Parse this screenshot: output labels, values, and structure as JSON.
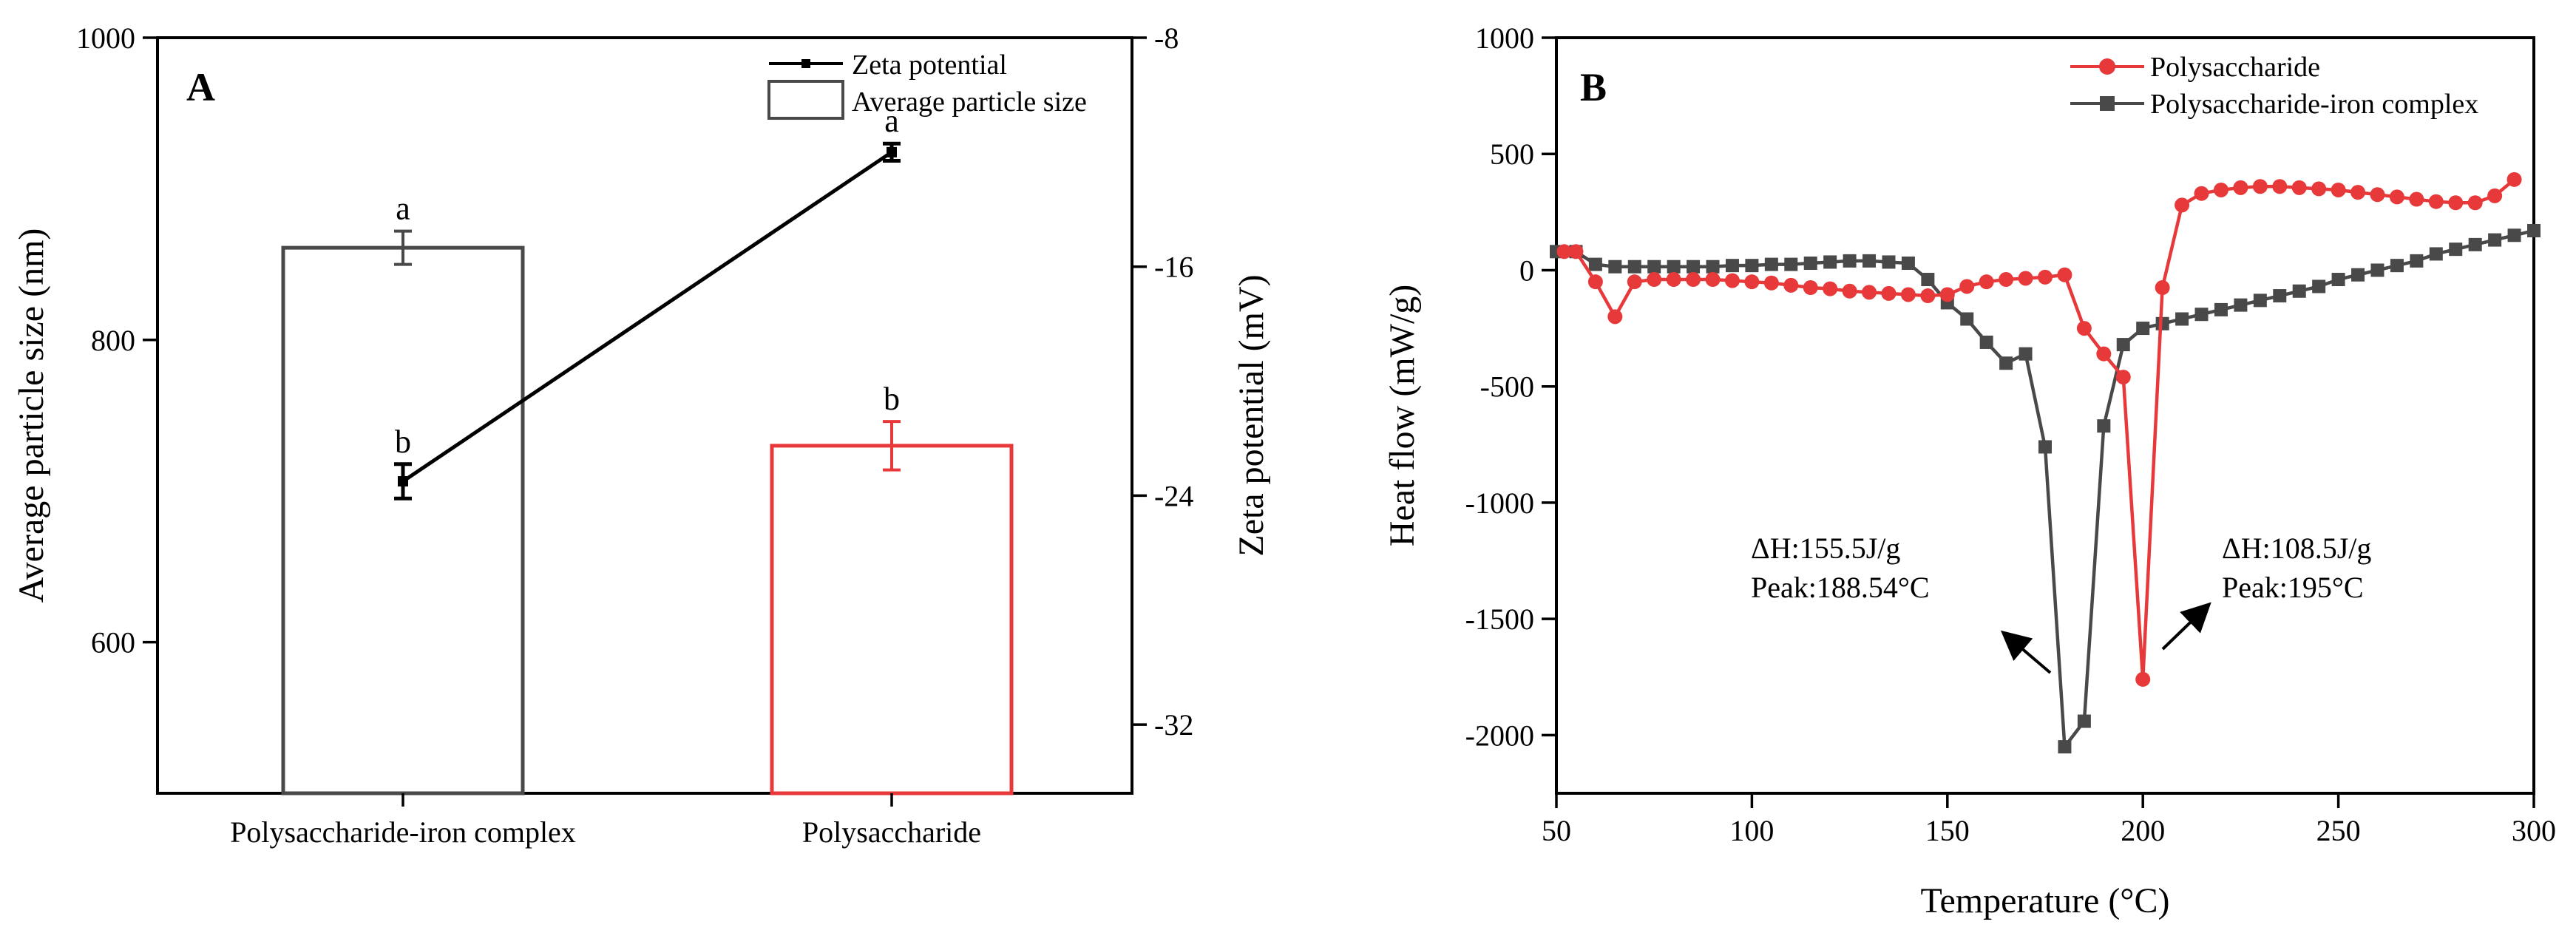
{
  "colors": {
    "red": "#e8393a",
    "gray": "#494949",
    "black": "#000000"
  },
  "chart_data": [
    {
      "panel": "A",
      "type": "bar",
      "categories": [
        "Polysaccharide-iron complex",
        "Polysaccharide"
      ],
      "legend": {
        "line": "Zeta potential",
        "bar": "Average particle size",
        "position": "top-right"
      },
      "ylabel": "Average particle size (nm)",
      "ylim": [
        500,
        1000
      ],
      "yticks": [
        "600",
        "800",
        "1000"
      ],
      "y2label": "Zeta potential (mV)",
      "y2lim": [
        -34.4,
        -8
      ],
      "y2ticks": [
        "-8",
        "-16",
        "-24",
        "-32"
      ],
      "bars": [
        {
          "category": "Polysaccharide-iron complex",
          "value": 861,
          "error": 11,
          "letter": "a",
          "color": "#494949"
        },
        {
          "category": "Polysaccharide",
          "value": 730,
          "error": 16,
          "letter": "b",
          "color": "#e8393a"
        }
      ],
      "zeta": [
        {
          "category": "Polysaccharide-iron complex",
          "value": -23.5,
          "error": 0.6,
          "letter": "b"
        },
        {
          "category": "Polysaccharide",
          "value": -12.0,
          "error": 0.3,
          "letter": "a"
        }
      ]
    },
    {
      "panel": "B",
      "type": "line",
      "xlabel": "Temperature (°C)",
      "ylabel": "Heat flow (mW/g)",
      "xlim": [
        50,
        300
      ],
      "ylim": [
        -2250,
        1000
      ],
      "xticks": [
        "50",
        "100",
        "150",
        "200",
        "250",
        "300"
      ],
      "yticks": [
        "1000",
        "500",
        "0",
        "-500",
        "-1000",
        "-1500",
        "-2000"
      ],
      "legend_position": "top-right",
      "annotations": [
        {
          "line1": "ΔH:155.5J/g",
          "line2": "Peak:188.54°C"
        },
        {
          "line1": "ΔH:108.5J/g",
          "line2": "Peak:195°C"
        }
      ],
      "series": [
        {
          "name": "Polysaccharide",
          "color": "#e8393a",
          "marker": "circle",
          "x": [
            52,
            55,
            60,
            65,
            70,
            75,
            80,
            85,
            90,
            95,
            100,
            105,
            110,
            115,
            120,
            125,
            130,
            135,
            140,
            145,
            150,
            155,
            160,
            165,
            170,
            175,
            180,
            185,
            190,
            195,
            200,
            205,
            210,
            215,
            220,
            225,
            230,
            235,
            240,
            245,
            250,
            255,
            260,
            265,
            270,
            275,
            280,
            285,
            290,
            295
          ],
          "y": [
            80,
            80,
            -50,
            -200,
            -50,
            -40,
            -40,
            -40,
            -40,
            -45,
            -50,
            -55,
            -65,
            -75,
            -80,
            -90,
            -95,
            -100,
            -105,
            -110,
            -105,
            -70,
            -50,
            -40,
            -35,
            -30,
            -20,
            -250,
            -360,
            -460,
            -1760,
            -75,
            280,
            330,
            345,
            355,
            360,
            360,
            355,
            350,
            345,
            335,
            325,
            315,
            305,
            295,
            290,
            290,
            320,
            390
          ]
        },
        {
          "name": "Polysaccharide-iron complex",
          "color": "#494949",
          "marker": "square",
          "x": [
            50,
            55,
            60,
            65,
            70,
            75,
            80,
            85,
            90,
            95,
            100,
            105,
            110,
            115,
            120,
            125,
            130,
            135,
            140,
            145,
            150,
            155,
            160,
            165,
            170,
            175,
            180,
            185,
            190,
            195,
            200,
            205,
            210,
            215,
            220,
            225,
            230,
            235,
            240,
            245,
            250,
            255,
            260,
            265,
            270,
            275,
            280,
            285,
            290,
            295,
            300
          ],
          "y": [
            80,
            80,
            25,
            15,
            15,
            15,
            15,
            15,
            15,
            20,
            20,
            25,
            25,
            30,
            35,
            40,
            40,
            35,
            30,
            -40,
            -140,
            -210,
            -310,
            -400,
            -360,
            -760,
            -2050,
            -1940,
            -670,
            -320,
            -250,
            -230,
            -210,
            -190,
            -170,
            -150,
            -130,
            -110,
            -90,
            -70,
            -40,
            -20,
            0,
            20,
            40,
            70,
            90,
            110,
            130,
            150,
            170
          ]
        }
      ]
    }
  ]
}
